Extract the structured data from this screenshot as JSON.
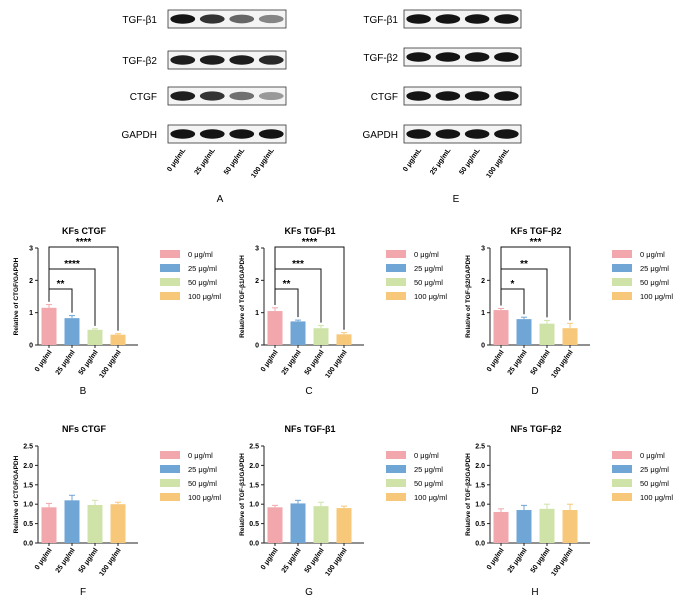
{
  "colors": {
    "c0": "#f2a7ac",
    "c25": "#6fa6d6",
    "c50": "#cfe3a8",
    "c100": "#f7c87a",
    "axis": "#222222"
  },
  "blots": [
    {
      "panel_label": "A",
      "rows": [
        {
          "label": "TGF-β1",
          "intensity": [
            1.0,
            0.85,
            0.6,
            0.45
          ]
        },
        {
          "label": "TGF-β2",
          "intensity": [
            0.95,
            0.95,
            0.95,
            0.9
          ]
        },
        {
          "label": "CTGF",
          "intensity": [
            0.95,
            0.85,
            0.55,
            0.35
          ]
        },
        {
          "label": "GAPDH",
          "intensity": [
            1.0,
            1.0,
            1.0,
            1.0
          ]
        }
      ],
      "lanes": [
        "0 μg/mL",
        "25 μg/mL",
        "50 μg/mL",
        "100 μg/mL"
      ]
    },
    {
      "panel_label": "E",
      "rows": [
        {
          "label": "TGF-β1",
          "intensity": [
            1.0,
            1.0,
            1.0,
            1.0
          ]
        },
        {
          "label": "TGF-β2",
          "intensity": [
            1.0,
            1.0,
            1.0,
            1.0
          ]
        },
        {
          "label": "CTGF",
          "intensity": [
            1.0,
            1.0,
            1.0,
            1.0
          ]
        },
        {
          "label": "GAPDH",
          "intensity": [
            1.0,
            1.0,
            1.0,
            1.0
          ]
        }
      ],
      "lanes": [
        "0 μg/mL",
        "25 μg/mL",
        "50 μg/mL",
        "100 μg/mL"
      ]
    }
  ],
  "legend_labels": [
    "0 μg/ml",
    "25 μg/ml",
    "50 μg/ml",
    "100 μg/ml"
  ],
  "chart_data": [
    {
      "type": "bar",
      "panel_label": "B",
      "title": "KFs CTGF",
      "ylabel": "Relative of CTGF/GAPDH",
      "categories": [
        "0 μg/ml",
        "25 μg/ml",
        "50 μg/ml",
        "100 μg/ml"
      ],
      "values": [
        1.15,
        0.83,
        0.47,
        0.32
      ],
      "errors": [
        0.1,
        0.08,
        0.03,
        0.03
      ],
      "ylim": [
        0,
        3
      ],
      "yticks": [
        "0",
        "1",
        "2",
        "3"
      ],
      "significance": [
        {
          "to": 1,
          "label": "**"
        },
        {
          "to": 2,
          "label": "****"
        },
        {
          "to": 3,
          "label": "****"
        }
      ]
    },
    {
      "type": "bar",
      "panel_label": "C",
      "title": "KFs TGF-β1",
      "ylabel": "Relative of TGF-β1/GAPDH",
      "categories": [
        "0 μg/ml",
        "25 μg/ml",
        "50 μg/ml",
        "100 μg/ml"
      ],
      "values": [
        1.05,
        0.73,
        0.52,
        0.33
      ],
      "errors": [
        0.1,
        0.04,
        0.08,
        0.05
      ],
      "ylim": [
        0,
        3
      ],
      "yticks": [
        "0",
        "1",
        "2",
        "3"
      ],
      "significance": [
        {
          "to": 1,
          "label": "**"
        },
        {
          "to": 2,
          "label": "***"
        },
        {
          "to": 3,
          "label": "****"
        }
      ]
    },
    {
      "type": "bar",
      "panel_label": "D",
      "title": "KFs TGF-β2",
      "ylabel": "Relative of TGF-β2/GAPDH",
      "categories": [
        "0 μg/ml",
        "25 μg/ml",
        "50 μg/ml",
        "100 μg/ml"
      ],
      "values": [
        1.08,
        0.8,
        0.66,
        0.52
      ],
      "errors": [
        0.05,
        0.06,
        0.1,
        0.15
      ],
      "ylim": [
        0,
        3
      ],
      "yticks": [
        "0",
        "1",
        "2",
        "3"
      ],
      "significance": [
        {
          "to": 1,
          "label": "*"
        },
        {
          "to": 2,
          "label": "**"
        },
        {
          "to": 3,
          "label": "***"
        }
      ]
    },
    {
      "type": "bar",
      "panel_label": "F",
      "title": "NFs CTGF",
      "ylabel": "Relative of CTGF/GAPDH",
      "categories": [
        "0 μg/ml",
        "25 μg/ml",
        "50 μg/ml",
        "100 μg/ml"
      ],
      "values": [
        0.92,
        1.1,
        0.98,
        1.0
      ],
      "errors": [
        0.1,
        0.13,
        0.12,
        0.05
      ],
      "ylim": [
        0,
        2.5
      ],
      "yticks": [
        "0.0",
        "0.5",
        "1.0",
        "1.5",
        "2.0",
        "2.5"
      ],
      "significance": []
    },
    {
      "type": "bar",
      "panel_label": "G",
      "title": "NFs TGF-β1",
      "ylabel": "Relative of TGF-β1/GAPDH",
      "categories": [
        "0 μg/ml",
        "25 μg/ml",
        "50 μg/ml",
        "100 μg/ml"
      ],
      "values": [
        0.92,
        1.02,
        0.95,
        0.9
      ],
      "errors": [
        0.05,
        0.08,
        0.1,
        0.05
      ],
      "ylim": [
        0,
        2.5
      ],
      "yticks": [
        "0.0",
        "0.5",
        "1.0",
        "1.5",
        "2.0",
        "2.5"
      ],
      "significance": []
    },
    {
      "type": "bar",
      "panel_label": "H",
      "title": "NFs TGF-β2",
      "ylabel": "Relative of TGF-β2/GAPDH",
      "categories": [
        "0 μg/ml",
        "25 μg/ml",
        "50 μg/ml",
        "100 μg/ml"
      ],
      "values": [
        0.8,
        0.85,
        0.88,
        0.85
      ],
      "errors": [
        0.08,
        0.12,
        0.12,
        0.15
      ],
      "ylim": [
        0,
        2.5
      ],
      "yticks": [
        "0.0",
        "0.5",
        "1.0",
        "1.5",
        "2.0",
        "2.5"
      ],
      "significance": []
    }
  ]
}
